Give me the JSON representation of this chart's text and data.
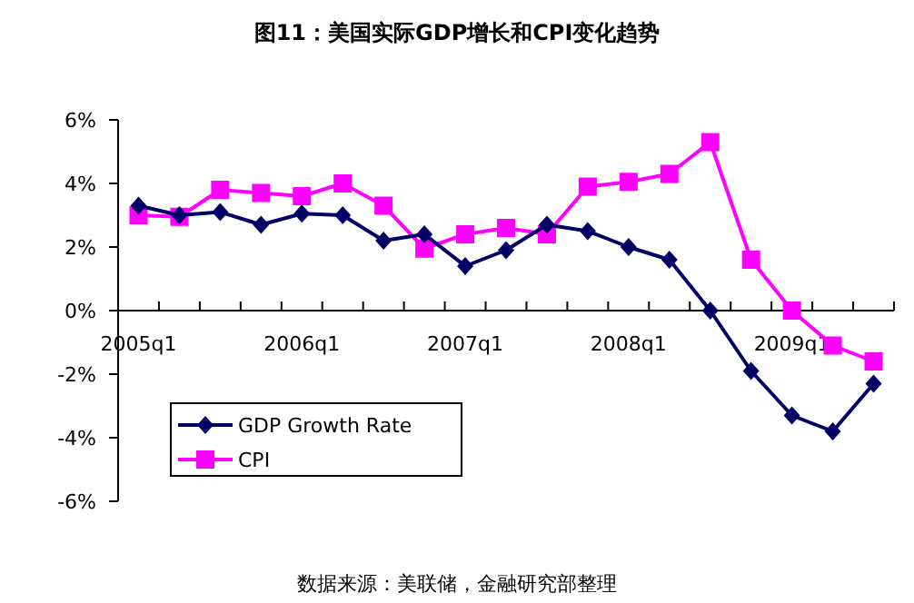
{
  "chart_data": {
    "type": "line",
    "title": "图11：美国实际GDP增长和CPI变化趋势",
    "categories": [
      "2005q1",
      null,
      null,
      null,
      "2006q1",
      null,
      null,
      null,
      "2007q1",
      null,
      null,
      null,
      "2008q1",
      null,
      null,
      null,
      "2009q1",
      null,
      null
    ],
    "series": [
      {
        "name": "GDP Growth Rate",
        "color": "#000066",
        "marker": "diamond",
        "values": [
          3.3,
          3.0,
          3.1,
          2.7,
          3.05,
          3.0,
          2.2,
          2.4,
          1.4,
          1.9,
          2.7,
          2.5,
          2.0,
          1.6,
          0,
          -1.9,
          -3.3,
          -3.8,
          -2.3
        ]
      },
      {
        "name": "CPI",
        "color": "#ff00ff",
        "marker": "square",
        "values": [
          3.0,
          2.95,
          3.8,
          3.7,
          3.6,
          4.0,
          3.3,
          1.95,
          2.4,
          2.6,
          2.4,
          3.9,
          4.05,
          4.3,
          5.3,
          1.6,
          0.0,
          -1.1,
          -1.6
        ]
      }
    ],
    "ylim": [
      -6,
      6
    ],
    "yticks": [
      {
        "value": -6,
        "label": "-6%"
      },
      {
        "value": -4,
        "label": "-4%"
      },
      {
        "value": -2,
        "label": "-2%"
      },
      {
        "value": 0,
        "label": "0%"
      },
      {
        "value": 2,
        "label": "2%"
      },
      {
        "value": 4,
        "label": "4%"
      },
      {
        "value": 6,
        "label": "6%"
      }
    ],
    "legend": "bottom left",
    "annotations": [
      "数据来源：美联储，金融研究部整理"
    ]
  }
}
